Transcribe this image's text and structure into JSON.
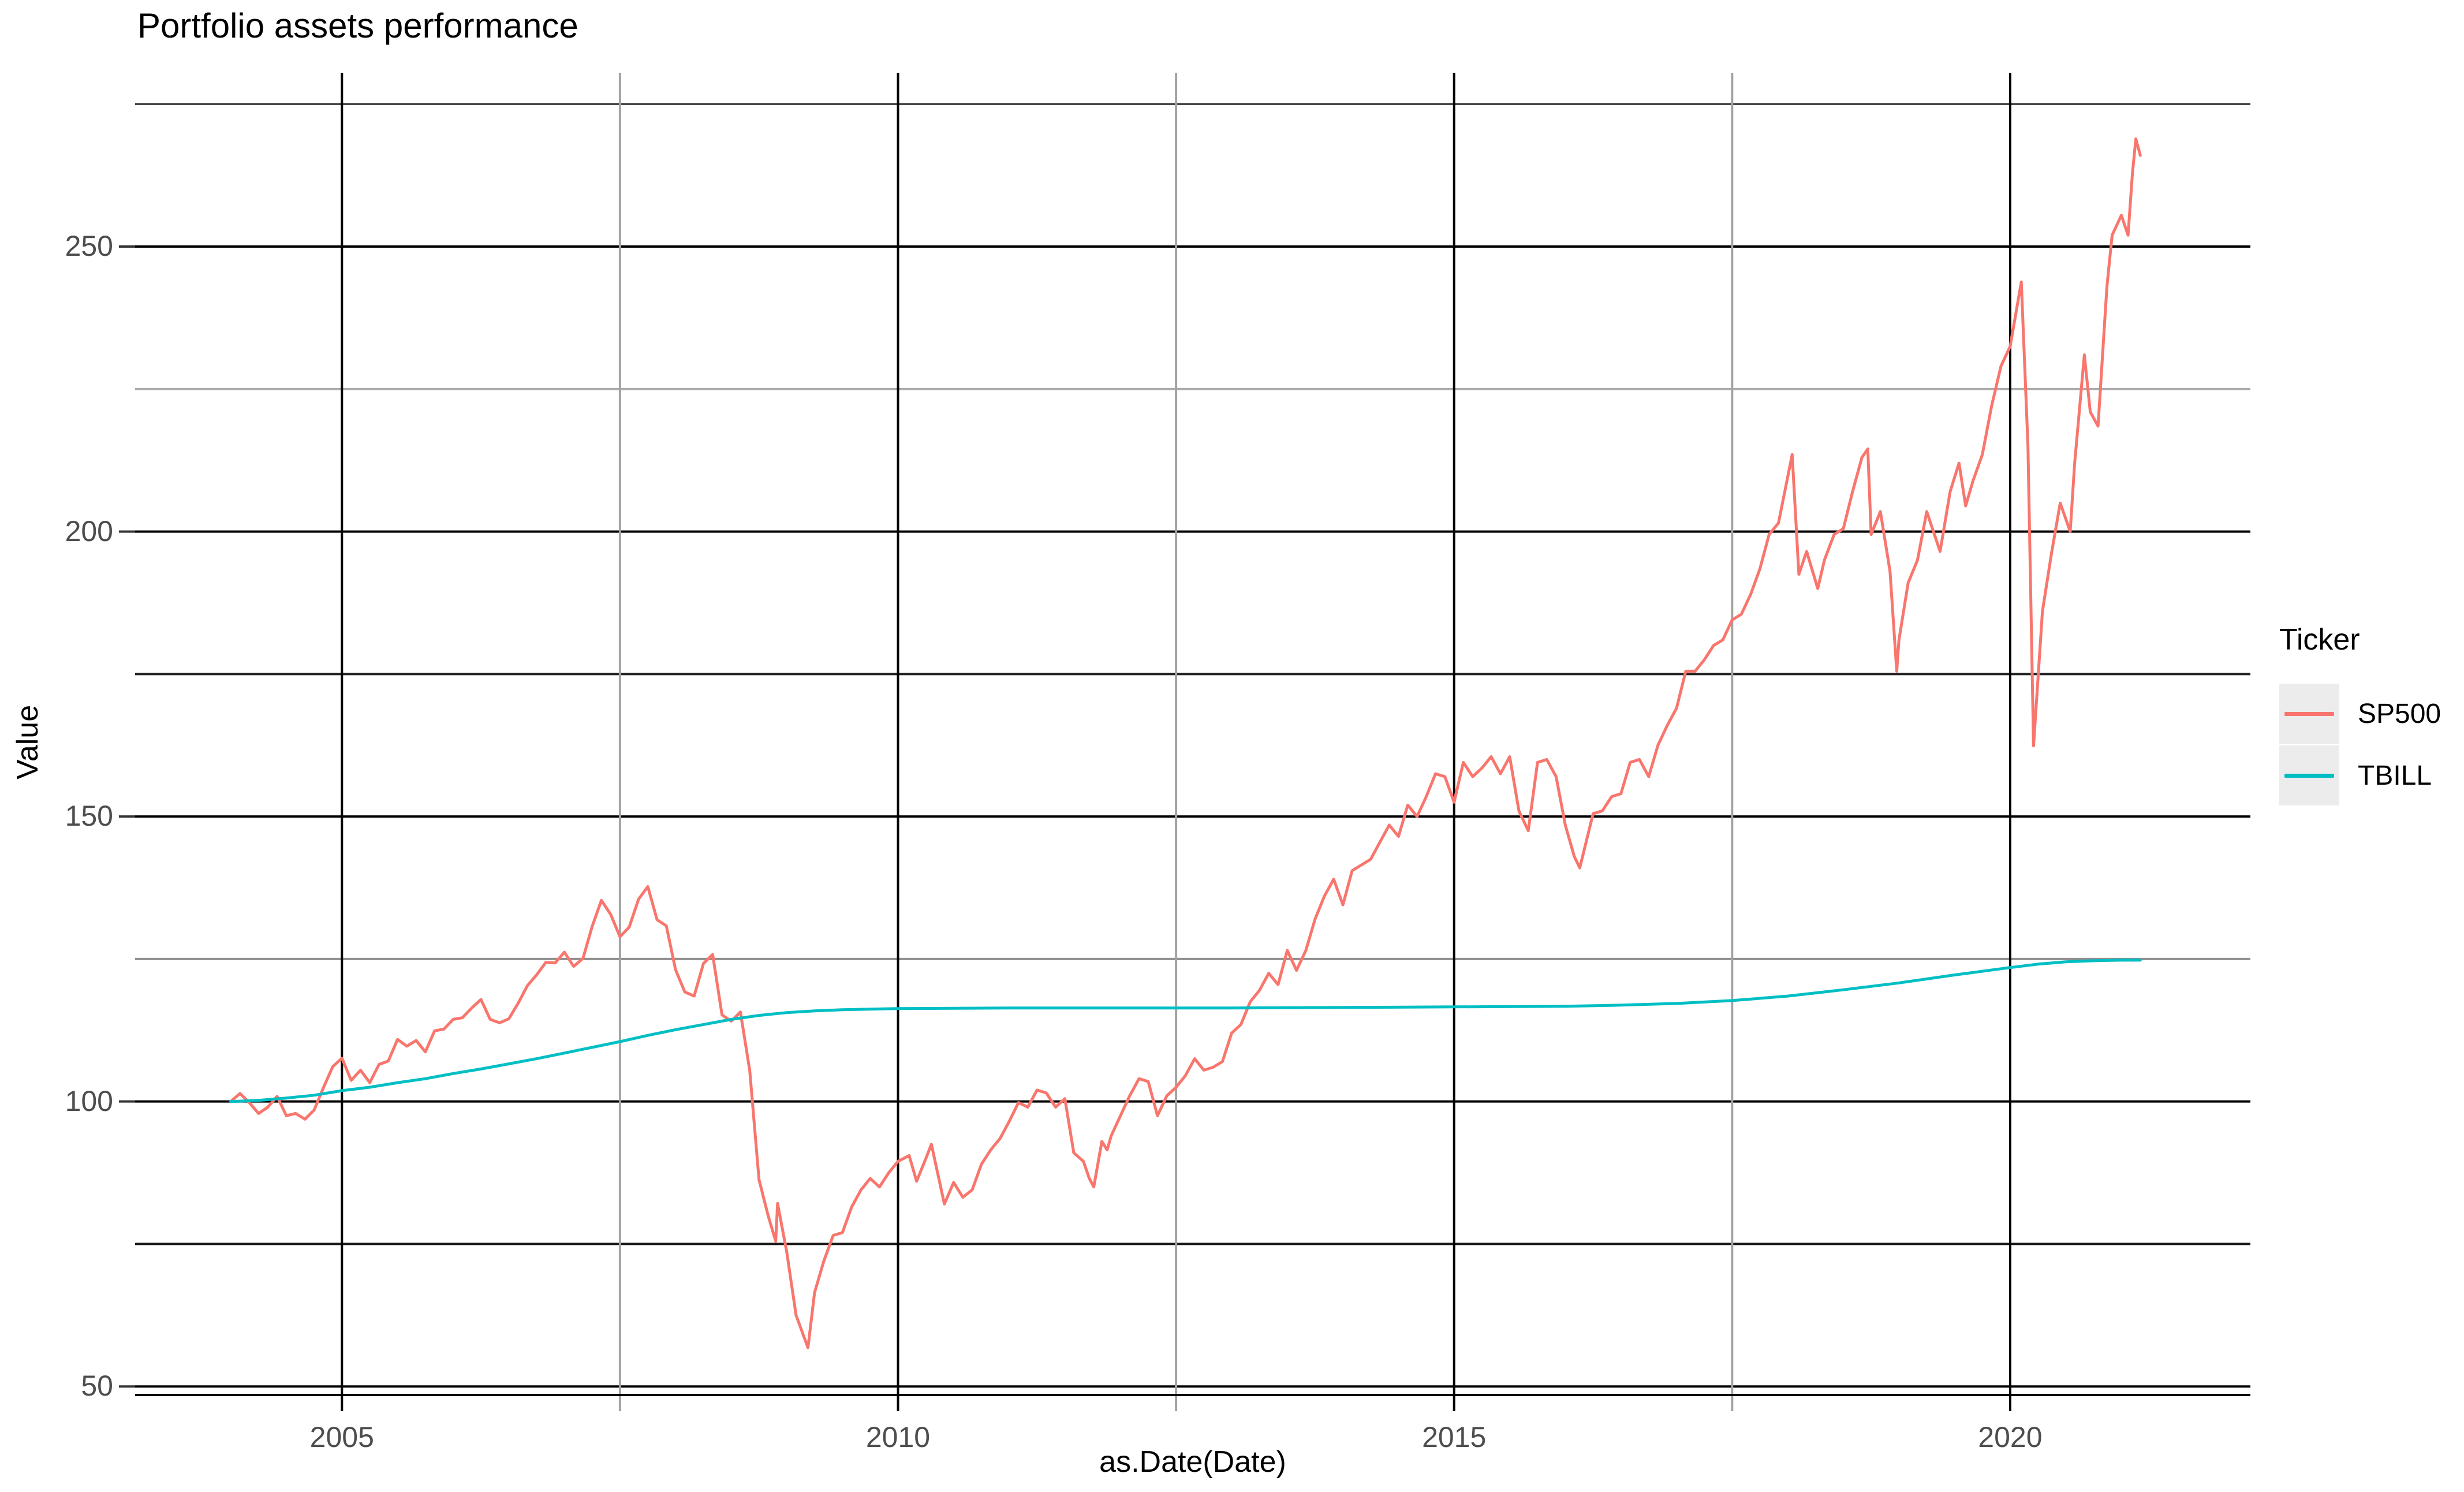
{
  "figure": {
    "title": "Portfolio assets performance"
  },
  "chart_data": {
    "type": "line",
    "title": "Portfolio assets performance",
    "xlabel": "as.Date(Date)",
    "ylabel": "Value",
    "legend_title": "Ticker",
    "legend_position": "right",
    "legend_key_fill": "#ececec",
    "grid_on": true,
    "xlim": [
      2003.14,
      2022.16
    ],
    "ylim": [
      48.5,
      280.5
    ],
    "x_ticks": [
      {
        "x": 2005,
        "label": "2005"
      },
      {
        "x": 2010,
        "label": "2010"
      },
      {
        "x": 2015,
        "label": "2015"
      },
      {
        "x": 2020,
        "label": "2020"
      }
    ],
    "y_ticks": [
      {
        "y": 50,
        "label": "50"
      },
      {
        "y": 100,
        "label": "100"
      },
      {
        "y": 150,
        "label": "150"
      },
      {
        "y": 200,
        "label": "200"
      },
      {
        "y": 250,
        "label": "250"
      }
    ],
    "grid": {
      "horizontal": [
        {
          "y": 275,
          "color": "#2e2e2e",
          "width": 3
        },
        {
          "y": 250,
          "color": "#000000",
          "width": 4
        },
        {
          "y": 225,
          "color": "#ababab",
          "width": 4
        },
        {
          "y": 200,
          "color": "#000000",
          "width": 4
        },
        {
          "y": 175,
          "color": "#222222",
          "width": 4
        },
        {
          "y": 150,
          "color": "#000000",
          "width": 4
        },
        {
          "y": 125,
          "color": "#8f8f8f",
          "width": 4
        },
        {
          "y": 100,
          "color": "#000000",
          "width": 4
        },
        {
          "y": 75,
          "color": "#1a1a1a",
          "width": 4
        },
        {
          "y": 50,
          "color": "#000000",
          "width": 4
        }
      ],
      "vertical": [
        {
          "x": 2005,
          "color": "#000000",
          "width": 4
        },
        {
          "x": 2007.5,
          "color": "#a3a3a3",
          "width": 4
        },
        {
          "x": 2010,
          "color": "#000000",
          "width": 4
        },
        {
          "x": 2012.5,
          "color": "#a3a3a3",
          "width": 4
        },
        {
          "x": 2015,
          "color": "#000000",
          "width": 4
        },
        {
          "x": 2017.5,
          "color": "#a3a3a3",
          "width": 4
        },
        {
          "x": 2020,
          "color": "#000000",
          "width": 4
        }
      ]
    },
    "axis_line": {
      "color": "#000000",
      "width": 4
    },
    "tick_mark": {
      "length": 28,
      "y_color": "#333333"
    },
    "series": [
      {
        "name": "SP500",
        "color": "#F8766D",
        "points": [
          [
            2004.0,
            100.0
          ],
          [
            2004.083,
            101.4
          ],
          [
            2004.167,
            99.8
          ],
          [
            2004.25,
            97.9
          ],
          [
            2004.333,
            99.0
          ],
          [
            2004.417,
            100.9
          ],
          [
            2004.5,
            97.5
          ],
          [
            2004.583,
            97.9
          ],
          [
            2004.667,
            96.9
          ],
          [
            2004.75,
            98.5
          ],
          [
            2004.833,
            102.4
          ],
          [
            2004.917,
            106.1
          ],
          [
            2005.0,
            107.6
          ],
          [
            2005.083,
            103.7
          ],
          [
            2005.167,
            105.5
          ],
          [
            2005.25,
            103.3
          ],
          [
            2005.333,
            106.5
          ],
          [
            2005.417,
            107.1
          ],
          [
            2005.5,
            110.9
          ],
          [
            2005.583,
            109.7
          ],
          [
            2005.667,
            110.7
          ],
          [
            2005.75,
            108.7
          ],
          [
            2005.833,
            112.4
          ],
          [
            2005.917,
            112.7
          ],
          [
            2006.0,
            114.4
          ],
          [
            2006.083,
            114.7
          ],
          [
            2006.167,
            116.4
          ],
          [
            2006.25,
            117.9
          ],
          [
            2006.333,
            114.4
          ],
          [
            2006.417,
            113.8
          ],
          [
            2006.5,
            114.5
          ],
          [
            2006.583,
            117.2
          ],
          [
            2006.667,
            120.3
          ],
          [
            2006.75,
            122.2
          ],
          [
            2006.833,
            124.4
          ],
          [
            2006.917,
            124.3
          ],
          [
            2007.0,
            126.2
          ],
          [
            2007.083,
            123.7
          ],
          [
            2007.167,
            125.1
          ],
          [
            2007.25,
            130.7
          ],
          [
            2007.333,
            135.3
          ],
          [
            2007.417,
            132.8
          ],
          [
            2007.5,
            128.9
          ],
          [
            2007.583,
            130.6
          ],
          [
            2007.667,
            135.5
          ],
          [
            2007.75,
            137.7
          ],
          [
            2007.833,
            131.9
          ],
          [
            2007.917,
            130.8
          ],
          [
            2008.0,
            123.1
          ],
          [
            2008.083,
            119.2
          ],
          [
            2008.167,
            118.5
          ],
          [
            2008.25,
            124.2
          ],
          [
            2008.333,
            125.8
          ],
          [
            2008.417,
            115.2
          ],
          [
            2008.5,
            114.1
          ],
          [
            2008.583,
            115.7
          ],
          [
            2008.667,
            105.4
          ],
          [
            2008.75,
            86.3
          ],
          [
            2008.833,
            79.9
          ],
          [
            2008.9,
            75.5
          ],
          [
            2008.917,
            82.1
          ],
          [
            2009.0,
            73.5
          ],
          [
            2009.083,
            62.5
          ],
          [
            2009.19,
            56.8
          ],
          [
            2009.25,
            66.5
          ],
          [
            2009.333,
            72.0
          ],
          [
            2009.417,
            76.5
          ],
          [
            2009.5,
            77.0
          ],
          [
            2009.583,
            81.5
          ],
          [
            2009.667,
            84.5
          ],
          [
            2009.75,
            86.5
          ],
          [
            2009.833,
            85.0
          ],
          [
            2009.917,
            87.5
          ],
          [
            2010.0,
            89.5
          ],
          [
            2010.1,
            90.5
          ],
          [
            2010.167,
            86.0
          ],
          [
            2010.25,
            90.0
          ],
          [
            2010.3,
            92.5
          ],
          [
            2010.417,
            82.0
          ],
          [
            2010.5,
            85.8
          ],
          [
            2010.583,
            83.2
          ],
          [
            2010.667,
            84.5
          ],
          [
            2010.75,
            89.0
          ],
          [
            2010.833,
            91.5
          ],
          [
            2010.917,
            93.5
          ],
          [
            2011.0,
            96.5
          ],
          [
            2011.083,
            99.8
          ],
          [
            2011.167,
            99.0
          ],
          [
            2011.25,
            102.0
          ],
          [
            2011.333,
            101.5
          ],
          [
            2011.417,
            99.0
          ],
          [
            2011.5,
            100.5
          ],
          [
            2011.58,
            91.0
          ],
          [
            2011.667,
            89.5
          ],
          [
            2011.72,
            86.5
          ],
          [
            2011.76,
            85.0
          ],
          [
            2011.833,
            93.0
          ],
          [
            2011.88,
            91.5
          ],
          [
            2011.917,
            94.0
          ],
          [
            2012.0,
            97.5
          ],
          [
            2012.083,
            101.0
          ],
          [
            2012.167,
            104.0
          ],
          [
            2012.25,
            103.5
          ],
          [
            2012.333,
            97.5
          ],
          [
            2012.417,
            101.0
          ],
          [
            2012.5,
            102.5
          ],
          [
            2012.583,
            104.5
          ],
          [
            2012.667,
            107.5
          ],
          [
            2012.75,
            105.5
          ],
          [
            2012.833,
            106.0
          ],
          [
            2012.917,
            107.0
          ],
          [
            2013.0,
            112.0
          ],
          [
            2013.083,
            113.5
          ],
          [
            2013.167,
            117.5
          ],
          [
            2013.25,
            119.5
          ],
          [
            2013.333,
            122.5
          ],
          [
            2013.417,
            120.5
          ],
          [
            2013.5,
            126.5
          ],
          [
            2013.583,
            123.0
          ],
          [
            2013.667,
            126.5
          ],
          [
            2013.75,
            132.0
          ],
          [
            2013.833,
            136.0
          ],
          [
            2013.917,
            139.0
          ],
          [
            2014.0,
            134.5
          ],
          [
            2014.083,
            140.5
          ],
          [
            2014.167,
            141.5
          ],
          [
            2014.25,
            142.5
          ],
          [
            2014.333,
            145.5
          ],
          [
            2014.417,
            148.5
          ],
          [
            2014.5,
            146.5
          ],
          [
            2014.583,
            152.0
          ],
          [
            2014.667,
            150.0
          ],
          [
            2014.75,
            153.5
          ],
          [
            2014.833,
            157.5
          ],
          [
            2014.917,
            157.0
          ],
          [
            2015.0,
            152.5
          ],
          [
            2015.083,
            159.5
          ],
          [
            2015.167,
            157.0
          ],
          [
            2015.25,
            158.5
          ],
          [
            2015.333,
            160.5
          ],
          [
            2015.417,
            157.5
          ],
          [
            2015.5,
            160.5
          ],
          [
            2015.583,
            151.0
          ],
          [
            2015.667,
            147.5
          ],
          [
            2015.75,
            159.5
          ],
          [
            2015.833,
            160.0
          ],
          [
            2015.917,
            157.0
          ],
          [
            2016.0,
            148.5
          ],
          [
            2016.08,
            143.0
          ],
          [
            2016.13,
            141.0
          ],
          [
            2016.25,
            150.5
          ],
          [
            2016.333,
            151.0
          ],
          [
            2016.417,
            153.5
          ],
          [
            2016.5,
            154.0
          ],
          [
            2016.583,
            159.5
          ],
          [
            2016.667,
            160.0
          ],
          [
            2016.75,
            157.0
          ],
          [
            2016.833,
            162.5
          ],
          [
            2016.917,
            166.0
          ],
          [
            2017.0,
            169.0
          ],
          [
            2017.083,
            175.5
          ],
          [
            2017.167,
            175.5
          ],
          [
            2017.25,
            177.5
          ],
          [
            2017.333,
            180.0
          ],
          [
            2017.417,
            181.0
          ],
          [
            2017.5,
            184.5
          ],
          [
            2017.583,
            185.5
          ],
          [
            2017.667,
            189.0
          ],
          [
            2017.75,
            193.5
          ],
          [
            2017.833,
            199.5
          ],
          [
            2017.917,
            201.5
          ],
          [
            2018.04,
            213.5
          ],
          [
            2018.1,
            192.5
          ],
          [
            2018.17,
            196.5
          ],
          [
            2018.27,
            190.0
          ],
          [
            2018.33,
            195.0
          ],
          [
            2018.417,
            199.5
          ],
          [
            2018.5,
            200.5
          ],
          [
            2018.583,
            207.0
          ],
          [
            2018.667,
            213.0
          ],
          [
            2018.72,
            214.5
          ],
          [
            2018.75,
            199.5
          ],
          [
            2018.833,
            203.5
          ],
          [
            2018.92,
            193.0
          ],
          [
            2018.98,
            175.5
          ],
          [
            2019.0,
            181.0
          ],
          [
            2019.083,
            191.0
          ],
          [
            2019.167,
            195.0
          ],
          [
            2019.25,
            203.5
          ],
          [
            2019.37,
            196.5
          ],
          [
            2019.46,
            207.0
          ],
          [
            2019.54,
            212.0
          ],
          [
            2019.6,
            204.5
          ],
          [
            2019.667,
            209.0
          ],
          [
            2019.75,
            213.5
          ],
          [
            2019.833,
            222.0
          ],
          [
            2019.917,
            229.0
          ],
          [
            2020.0,
            232.5
          ],
          [
            2020.1,
            243.8
          ],
          [
            2020.16,
            215.0
          ],
          [
            2020.21,
            162.4
          ],
          [
            2020.29,
            186.0
          ],
          [
            2020.37,
            196.0
          ],
          [
            2020.45,
            205.0
          ],
          [
            2020.54,
            200.0
          ],
          [
            2020.58,
            212.0
          ],
          [
            2020.667,
            231.0
          ],
          [
            2020.72,
            221.0
          ],
          [
            2020.79,
            218.5
          ],
          [
            2020.87,
            243.0
          ],
          [
            2020.917,
            252.0
          ],
          [
            2021.0,
            255.5
          ],
          [
            2021.06,
            252.0
          ],
          [
            2021.1,
            263.0
          ],
          [
            2021.13,
            268.9
          ],
          [
            2021.17,
            266.0
          ]
        ]
      },
      {
        "name": "TBILL",
        "color": "#00BFC4",
        "points": [
          [
            2004.0,
            100.0
          ],
          [
            2004.25,
            100.2
          ],
          [
            2004.5,
            100.6
          ],
          [
            2004.75,
            101.1
          ],
          [
            2005.0,
            101.9
          ],
          [
            2005.25,
            102.5
          ],
          [
            2005.5,
            103.3
          ],
          [
            2005.75,
            104.0
          ],
          [
            2006.0,
            104.9
          ],
          [
            2006.25,
            105.7
          ],
          [
            2006.5,
            106.6
          ],
          [
            2006.75,
            107.5
          ],
          [
            2007.0,
            108.5
          ],
          [
            2007.25,
            109.5
          ],
          [
            2007.5,
            110.5
          ],
          [
            2007.75,
            111.6
          ],
          [
            2008.0,
            112.6
          ],
          [
            2008.25,
            113.5
          ],
          [
            2008.5,
            114.4
          ],
          [
            2008.75,
            115.1
          ],
          [
            2009.0,
            115.6
          ],
          [
            2009.25,
            115.9
          ],
          [
            2009.5,
            116.1
          ],
          [
            2010.0,
            116.3
          ],
          [
            2011.0,
            116.4
          ],
          [
            2012.0,
            116.4
          ],
          [
            2013.0,
            116.4
          ],
          [
            2014.0,
            116.5
          ],
          [
            2015.0,
            116.6
          ],
          [
            2016.0,
            116.7
          ],
          [
            2016.5,
            116.9
          ],
          [
            2017.0,
            117.2
          ],
          [
            2017.5,
            117.7
          ],
          [
            2018.0,
            118.5
          ],
          [
            2018.5,
            119.6
          ],
          [
            2019.0,
            120.8
          ],
          [
            2019.5,
            122.2
          ],
          [
            2020.0,
            123.5
          ],
          [
            2020.25,
            124.1
          ],
          [
            2020.5,
            124.5
          ],
          [
            2020.75,
            124.7
          ],
          [
            2021.0,
            124.8
          ],
          [
            2021.17,
            124.8
          ]
        ]
      }
    ]
  }
}
